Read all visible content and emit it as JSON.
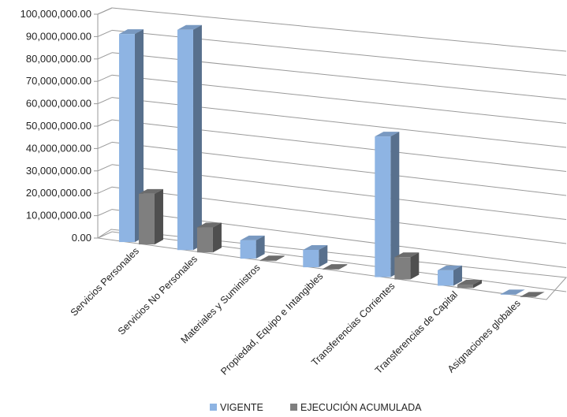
{
  "chart_data": {
    "type": "bar",
    "title": "",
    "xlabel": "",
    "ylabel": "",
    "ylim": [
      0,
      100000000
    ],
    "yticks": [
      "0.00",
      "10,000,000.00",
      "20,000,000.00",
      "30,000,000.00",
      "40,000,000.00",
      "50,000,000.00",
      "60,000,000.00",
      "70,000,000.00",
      "80,000,000.00",
      "90,000,000.00",
      "100,000,000.00"
    ],
    "grid": true,
    "legend_position": "bottom",
    "categories": [
      "Servicios  Personales",
      "Servicios No Personales",
      "Materiales y Suministros",
      "Propiedad, Equipo e Intangibles",
      "Transferencias Corrientes",
      "Transferencias de Capital",
      "Asignaciones globales"
    ],
    "series": [
      {
        "name": "VIGENTE",
        "color": "#8EB4E3",
        "values": [
          92500000,
          97000000,
          8000000,
          7500000,
          60000000,
          6500000,
          0
        ]
      },
      {
        "name": "EJECUCIÓN ACUMULADA",
        "color": "#7F7F7F",
        "values": [
          22500000,
          11000000,
          300000,
          300000,
          9500000,
          1500000,
          0
        ]
      }
    ]
  }
}
